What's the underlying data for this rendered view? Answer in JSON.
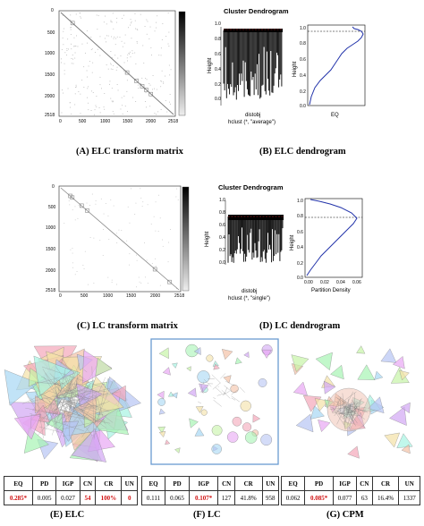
{
  "panels": {
    "a": {
      "caption": "(A) ELC transform matrix",
      "ticks": [
        "0",
        "500",
        "1000",
        "1500",
        "2000",
        "2518"
      ]
    },
    "b": {
      "caption": "(B) ELC dendrogram",
      "dendro": {
        "title": "Cluster Dendrogram",
        "ylabel": "Height",
        "xlabel1": "distobj",
        "xlabel2": "hclust (*, \"average\")",
        "yticks": [
          "0.0",
          "0.2",
          "0.4",
          "0.6",
          "0.8",
          "1.0"
        ]
      },
      "curve": {
        "ylabel": "Height",
        "xlabel": "EQ",
        "yticks": [
          "0.0",
          "0.2",
          "0.4",
          "0.6",
          "0.8",
          "1.0"
        ]
      }
    },
    "c": {
      "caption": "(C) LC transform matrix",
      "ticks": [
        "0",
        "500",
        "1000",
        "1500",
        "2000",
        "2518"
      ]
    },
    "d": {
      "caption": "(D) LC dendrogram",
      "dendro": {
        "title": "Cluster Dendrogram",
        "ylabel": "Height",
        "xlabel1": "distobj",
        "xlabel2": "hclust (*, \"single\")",
        "yticks": [
          "0.0",
          "0.2",
          "0.4",
          "0.6",
          "0.8",
          "1.0"
        ]
      },
      "curve": {
        "ylabel": "Height",
        "xlabel": "Partition Density",
        "xticks": [
          "0.00",
          "0.02",
          "0.04",
          "0.06"
        ],
        "yticks": [
          "0.0",
          "0.2",
          "0.4",
          "0.6",
          "0.8",
          "1.0"
        ]
      }
    },
    "e": {
      "caption": "(E) ELC",
      "headers": [
        "EQ",
        "PD",
        "IGP",
        "CN",
        "CR",
        "UN"
      ],
      "values": [
        "0.285*",
        "0.005",
        "0.027",
        "54",
        "100%",
        "0"
      ],
      "highlighted": [
        0,
        3,
        4,
        5
      ]
    },
    "f": {
      "caption": "(F) LC",
      "headers": [
        "EQ",
        "PD",
        "IGP",
        "CN",
        "CR",
        "UN"
      ],
      "values": [
        "0.111",
        "0.065",
        "0.107*",
        "127",
        "41.8%",
        "958"
      ],
      "highlighted": [
        2
      ]
    },
    "g": {
      "caption": "(G) CPM",
      "headers": [
        "EQ",
        "PD",
        "IGP",
        "CN",
        "CR",
        "UN"
      ],
      "values": [
        "0.062",
        "0.085*",
        "0.077",
        "63",
        "16.4%",
        "1337"
      ],
      "highlighted": [
        1
      ]
    }
  },
  "colors": {
    "curve_blue": "#2233aa",
    "cut_red": "#cc2222",
    "highlight_red": "#d01010",
    "frame_blue": "#6a9bd1"
  }
}
